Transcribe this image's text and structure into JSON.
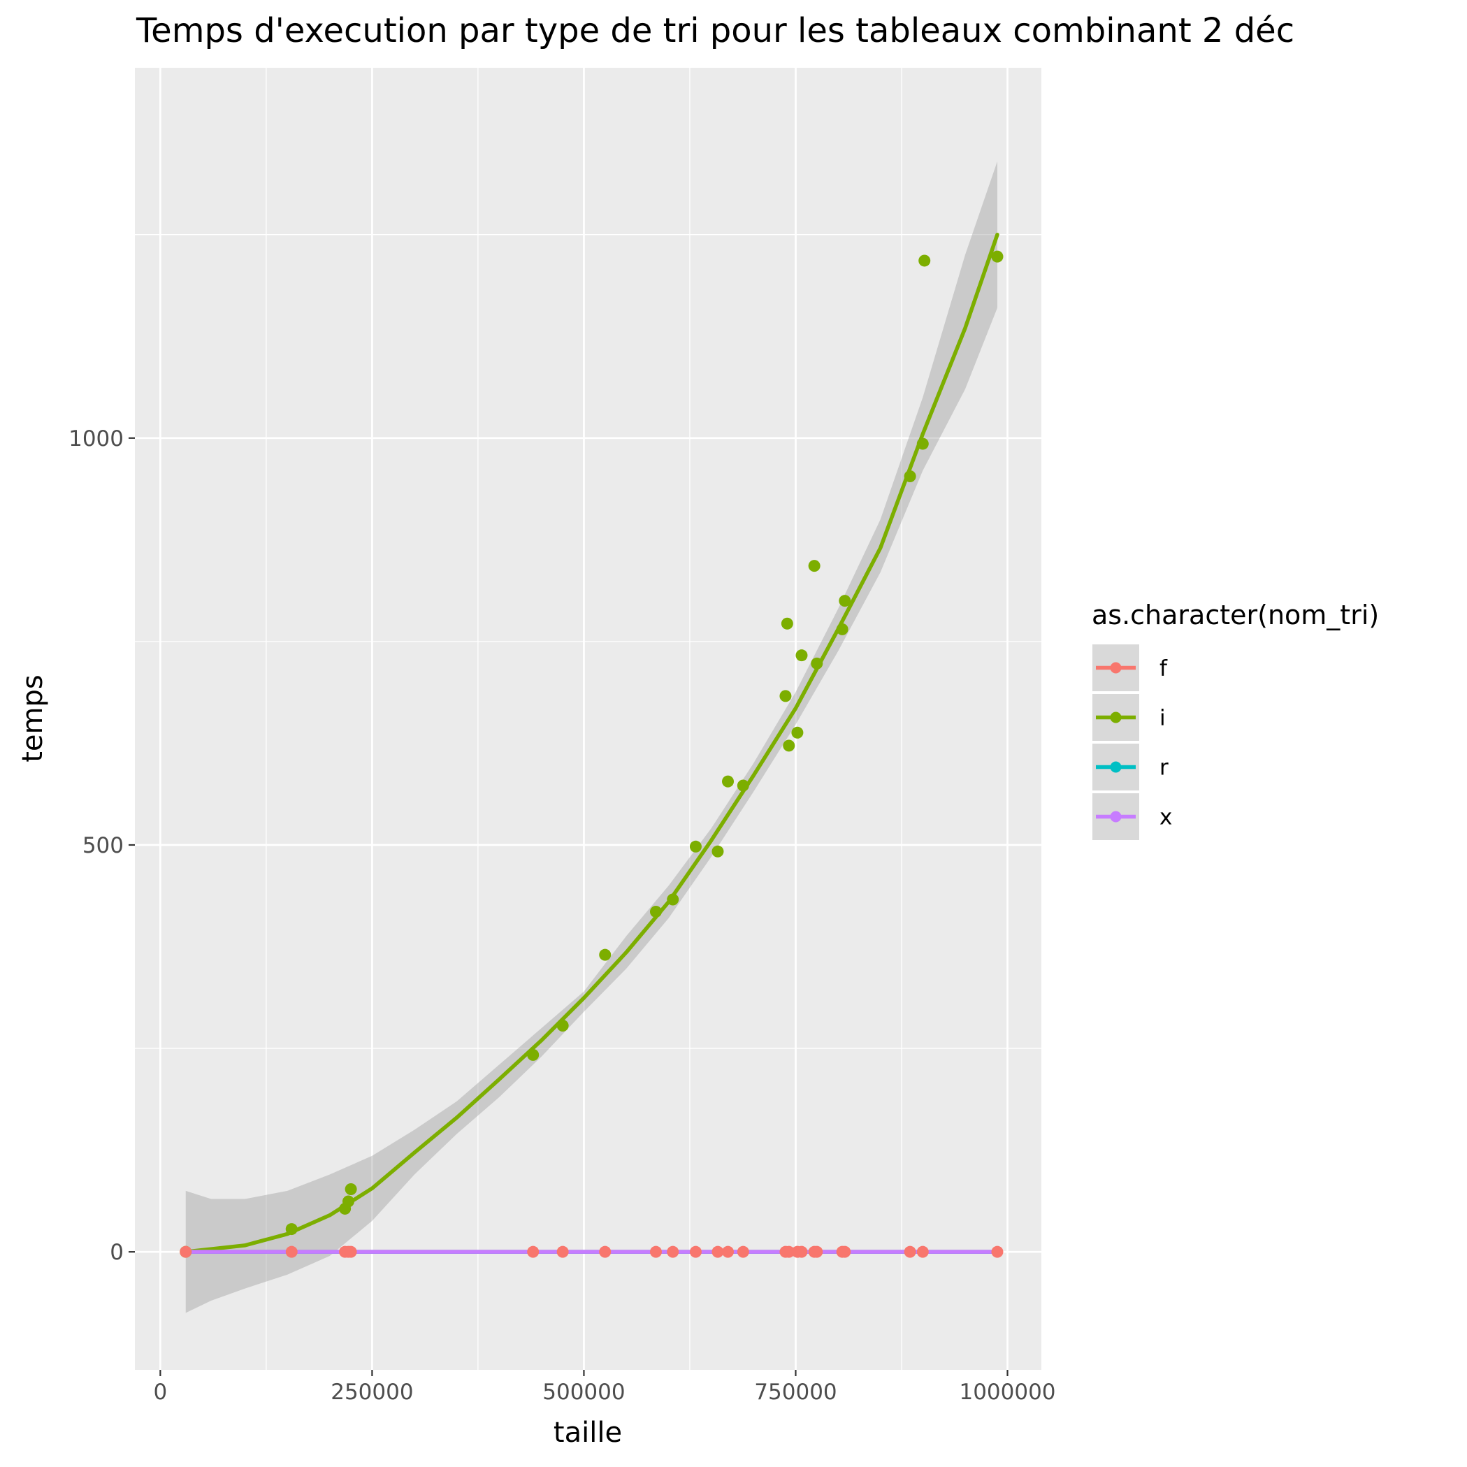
{
  "chart_data": {
    "type": "scatter",
    "title": "Temps d'execution par type de tri pour les tableaux combinant 2 déc",
    "xlabel": "taille",
    "ylabel": "temps",
    "xlim": [
      -30000,
      1040000
    ],
    "ylim": [
      -145,
      1455
    ],
    "x_ticks": [
      0,
      250000,
      500000,
      750000,
      1000000
    ],
    "x_tick_labels": [
      "0",
      "250000",
      "500000",
      "750000",
      "1000000"
    ],
    "y_ticks": [
      0,
      500,
      1000
    ],
    "y_tick_labels": [
      "0",
      "500",
      "1000"
    ],
    "grid": true,
    "legend": {
      "title": "as.character(nom_tri)",
      "placement": "right",
      "entries": [
        {
          "label": "f",
          "color": "#F8766D"
        },
        {
          "label": "i",
          "color": "#7CAE00"
        },
        {
          "label": "r",
          "color": "#00BFC4"
        },
        {
          "label": "x",
          "color": "#C77CFF"
        }
      ]
    },
    "series": [
      {
        "name": "i",
        "color": "#7CAE00",
        "points": [
          [
            30000,
            0
          ],
          [
            155000,
            28
          ],
          [
            218000,
            53
          ],
          [
            222000,
            62
          ],
          [
            225000,
            77
          ],
          [
            440000,
            242
          ],
          [
            475000,
            278
          ],
          [
            525000,
            365
          ],
          [
            585000,
            418
          ],
          [
            605000,
            433
          ],
          [
            632000,
            498
          ],
          [
            658000,
            492
          ],
          [
            670000,
            578
          ],
          [
            688000,
            573
          ],
          [
            738000,
            683
          ],
          [
            740000,
            772
          ],
          [
            742000,
            622
          ],
          [
            752000,
            638
          ],
          [
            757000,
            733
          ],
          [
            772000,
            843
          ],
          [
            775000,
            723
          ],
          [
            805000,
            765
          ],
          [
            808000,
            800
          ],
          [
            885000,
            953
          ],
          [
            900000,
            993
          ],
          [
            902000,
            1218
          ],
          [
            988000,
            1223
          ]
        ],
        "fit": [
          [
            30000,
            0
          ],
          [
            100000,
            8
          ],
          [
            150000,
            22
          ],
          [
            200000,
            45
          ],
          [
            250000,
            78
          ],
          [
            300000,
            122
          ],
          [
            350000,
            165
          ],
          [
            400000,
            212
          ],
          [
            450000,
            260
          ],
          [
            500000,
            312
          ],
          [
            550000,
            368
          ],
          [
            600000,
            430
          ],
          [
            650000,
            505
          ],
          [
            700000,
            585
          ],
          [
            750000,
            668
          ],
          [
            800000,
            765
          ],
          [
            850000,
            865
          ],
          [
            900000,
            1005
          ],
          [
            950000,
            1135
          ],
          [
            988000,
            1250
          ]
        ],
        "ci_upper": [
          [
            30000,
            75
          ],
          [
            60000,
            65
          ],
          [
            100000,
            65
          ],
          [
            150000,
            75
          ],
          [
            200000,
            95
          ],
          [
            250000,
            118
          ],
          [
            300000,
            150
          ],
          [
            350000,
            185
          ],
          [
            400000,
            230
          ],
          [
            450000,
            275
          ],
          [
            500000,
            320
          ],
          [
            550000,
            388
          ],
          [
            600000,
            450
          ],
          [
            650000,
            520
          ],
          [
            700000,
            600
          ],
          [
            750000,
            688
          ],
          [
            800000,
            790
          ],
          [
            850000,
            900
          ],
          [
            900000,
            1050
          ],
          [
            950000,
            1225
          ],
          [
            988000,
            1340
          ]
        ],
        "ci_lower": [
          [
            30000,
            -75
          ],
          [
            60000,
            -60
          ],
          [
            100000,
            -45
          ],
          [
            150000,
            -28
          ],
          [
            200000,
            -5
          ],
          [
            250000,
            38
          ],
          [
            300000,
            95
          ],
          [
            350000,
            145
          ],
          [
            400000,
            190
          ],
          [
            450000,
            240
          ],
          [
            500000,
            295
          ],
          [
            550000,
            348
          ],
          [
            600000,
            410
          ],
          [
            650000,
            485
          ],
          [
            700000,
            565
          ],
          [
            750000,
            648
          ],
          [
            800000,
            738
          ],
          [
            850000,
            835
          ],
          [
            900000,
            960
          ],
          [
            950000,
            1060
          ],
          [
            988000,
            1160
          ]
        ]
      },
      {
        "name": "f",
        "color": "#F8766D",
        "points": [
          [
            30000,
            0
          ],
          [
            155000,
            0
          ],
          [
            218000,
            0
          ],
          [
            222000,
            0
          ],
          [
            225000,
            0
          ],
          [
            440000,
            0
          ],
          [
            475000,
            0
          ],
          [
            525000,
            0
          ],
          [
            585000,
            0
          ],
          [
            605000,
            0
          ],
          [
            632000,
            0
          ],
          [
            658000,
            0
          ],
          [
            670000,
            0
          ],
          [
            688000,
            0
          ],
          [
            738000,
            0
          ],
          [
            742000,
            0
          ],
          [
            752000,
            0
          ],
          [
            757000,
            0
          ],
          [
            772000,
            0
          ],
          [
            775000,
            0
          ],
          [
            805000,
            0
          ],
          [
            808000,
            0
          ],
          [
            885000,
            0
          ],
          [
            900000,
            0
          ],
          [
            988000,
            0
          ]
        ],
        "fit": [
          [
            30000,
            0
          ],
          [
            988000,
            0
          ]
        ]
      },
      {
        "name": "r",
        "color": "#00BFC4",
        "points": [],
        "fit": [
          [
            30000,
            0
          ],
          [
            988000,
            0
          ]
        ]
      },
      {
        "name": "x",
        "color": "#C77CFF",
        "points": [],
        "fit": [
          [
            30000,
            0
          ],
          [
            988000,
            0
          ]
        ]
      }
    ]
  }
}
